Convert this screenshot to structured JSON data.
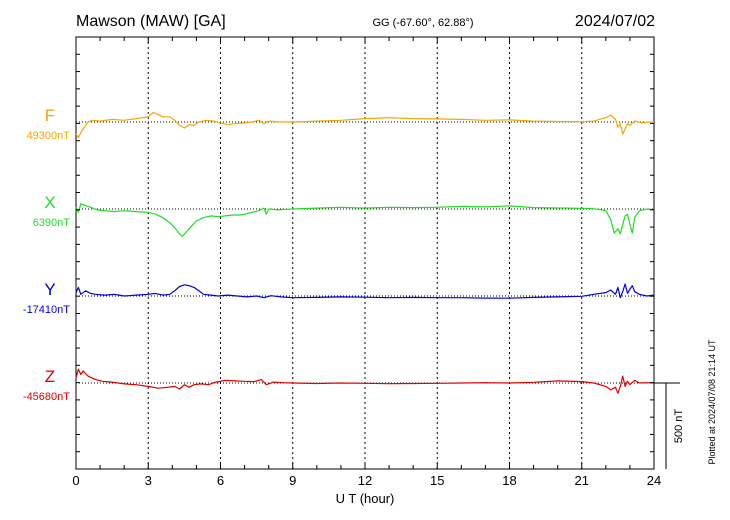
{
  "header": {
    "station": "Mawson (MAW)  [GA]",
    "coords": "GG (-67.60°,  62.88°)",
    "date": "2024/07/02"
  },
  "side_note": "Plotted at 2024/07/08 21:14 UT",
  "scale_label": "500 nT",
  "chart_data": {
    "type": "line",
    "xlabel": "U T (hour)",
    "xlim": [
      0,
      24
    ],
    "x_ticks": [
      "0",
      "3",
      "6",
      "9",
      "12",
      "15",
      "18",
      "21",
      "24"
    ],
    "scale_bar_nT": 500,
    "grid": "dotted vertical every 3 h, dotted baseline per trace",
    "series": [
      {
        "name": "F",
        "baseline_label": "49300nT",
        "baseline": 49300,
        "color": "#f0a800",
        "points": [
          [
            0,
            49230
          ],
          [
            0.1,
            49210
          ],
          [
            0.25,
            49250
          ],
          [
            0.35,
            49270
          ],
          [
            0.5,
            49300
          ],
          [
            0.7,
            49310
          ],
          [
            1.0,
            49305
          ],
          [
            1.5,
            49315
          ],
          [
            2.0,
            49310
          ],
          [
            2.5,
            49320
          ],
          [
            3.0,
            49330
          ],
          [
            3.2,
            49355
          ],
          [
            3.4,
            49345
          ],
          [
            3.6,
            49330
          ],
          [
            3.9,
            49330
          ],
          [
            4.1,
            49310
          ],
          [
            4.3,
            49280
          ],
          [
            4.5,
            49265
          ],
          [
            4.7,
            49285
          ],
          [
            4.9,
            49280
          ],
          [
            5.1,
            49300
          ],
          [
            5.4,
            49310
          ],
          [
            5.7,
            49305
          ],
          [
            6.0,
            49295
          ],
          [
            6.3,
            49285
          ],
          [
            6.6,
            49290
          ],
          [
            7.0,
            49295
          ],
          [
            7.3,
            49300
          ],
          [
            7.6,
            49310
          ],
          [
            7.8,
            49290
          ],
          [
            8.0,
            49305
          ],
          [
            8.5,
            49300
          ],
          [
            9.0,
            49300
          ],
          [
            10,
            49305
          ],
          [
            11,
            49310
          ],
          [
            12,
            49320
          ],
          [
            13,
            49325
          ],
          [
            14,
            49320
          ],
          [
            15,
            49318
          ],
          [
            16,
            49315
          ],
          [
            17,
            49310
          ],
          [
            18,
            49312
          ],
          [
            19,
            49305
          ],
          [
            20,
            49303
          ],
          [
            21,
            49302
          ],
          [
            21.5,
            49305
          ],
          [
            22.0,
            49325
          ],
          [
            22.2,
            49340
          ],
          [
            22.4,
            49315
          ],
          [
            22.5,
            49270
          ],
          [
            22.6,
            49290
          ],
          [
            22.7,
            49230
          ],
          [
            22.8,
            49260
          ],
          [
            22.9,
            49290
          ],
          [
            23.0,
            49280
          ],
          [
            23.2,
            49305
          ],
          [
            23.5,
            49295
          ],
          [
            23.8,
            49300
          ],
          [
            24,
            49300
          ]
        ]
      },
      {
        "name": "X",
        "baseline_label": "6390nT",
        "baseline": 6390,
        "color": "#22dd22",
        "points": [
          [
            0,
            6400
          ],
          [
            0.1,
            6370
          ],
          [
            0.2,
            6420
          ],
          [
            0.4,
            6410
          ],
          [
            0.6,
            6400
          ],
          [
            0.9,
            6385
          ],
          [
            1.2,
            6380
          ],
          [
            1.6,
            6375
          ],
          [
            2.0,
            6380
          ],
          [
            2.5,
            6375
          ],
          [
            3.0,
            6370
          ],
          [
            3.3,
            6360
          ],
          [
            3.6,
            6340
          ],
          [
            3.9,
            6310
          ],
          [
            4.1,
            6280
          ],
          [
            4.3,
            6245
          ],
          [
            4.4,
            6230
          ],
          [
            4.6,
            6260
          ],
          [
            4.8,
            6290
          ],
          [
            5.0,
            6320
          ],
          [
            5.3,
            6340
          ],
          [
            5.6,
            6350
          ],
          [
            5.9,
            6345
          ],
          [
            6.2,
            6350
          ],
          [
            6.5,
            6355
          ],
          [
            6.8,
            6355
          ],
          [
            7.0,
            6360
          ],
          [
            7.3,
            6370
          ],
          [
            7.6,
            6380
          ],
          [
            7.8,
            6395
          ],
          [
            7.9,
            6360
          ],
          [
            8.0,
            6390
          ],
          [
            8.4,
            6385
          ],
          [
            8.8,
            6388
          ],
          [
            9,
            6390
          ],
          [
            10,
            6395
          ],
          [
            11,
            6400
          ],
          [
            12,
            6395
          ],
          [
            13,
            6400
          ],
          [
            14,
            6398
          ],
          [
            15,
            6400
          ],
          [
            16,
            6405
          ],
          [
            17,
            6402
          ],
          [
            18,
            6408
          ],
          [
            19,
            6398
          ],
          [
            20,
            6396
          ],
          [
            21,
            6394
          ],
          [
            21.5,
            6392
          ],
          [
            22.0,
            6380
          ],
          [
            22.2,
            6330
          ],
          [
            22.35,
            6250
          ],
          [
            22.5,
            6275
          ],
          [
            22.6,
            6245
          ],
          [
            22.7,
            6300
          ],
          [
            22.8,
            6350
          ],
          [
            22.9,
            6360
          ],
          [
            23.0,
            6300
          ],
          [
            23.1,
            6250
          ],
          [
            23.2,
            6340
          ],
          [
            23.4,
            6380
          ],
          [
            23.7,
            6390
          ],
          [
            24,
            6385
          ]
        ]
      },
      {
        "name": "Y",
        "baseline_label": "-17410nT",
        "baseline": -17410,
        "color": "#0000e0",
        "points": [
          [
            0,
            -17390
          ],
          [
            0.1,
            -17360
          ],
          [
            0.2,
            -17400
          ],
          [
            0.4,
            -17380
          ],
          [
            0.6,
            -17395
          ],
          [
            0.8,
            -17400
          ],
          [
            1.2,
            -17405
          ],
          [
            1.6,
            -17400
          ],
          [
            2.0,
            -17410
          ],
          [
            2.5,
            -17405
          ],
          [
            3.0,
            -17400
          ],
          [
            3.3,
            -17395
          ],
          [
            3.6,
            -17405
          ],
          [
            3.9,
            -17400
          ],
          [
            4.1,
            -17380
          ],
          [
            4.3,
            -17355
          ],
          [
            4.5,
            -17345
          ],
          [
            4.7,
            -17350
          ],
          [
            4.9,
            -17360
          ],
          [
            5.1,
            -17380
          ],
          [
            5.3,
            -17400
          ],
          [
            5.6,
            -17405
          ],
          [
            5.9,
            -17410
          ],
          [
            6.3,
            -17405
          ],
          [
            6.7,
            -17410
          ],
          [
            7.1,
            -17415
          ],
          [
            7.5,
            -17410
          ],
          [
            7.8,
            -17420
          ],
          [
            8.1,
            -17408
          ],
          [
            8.5,
            -17415
          ],
          [
            9,
            -17420
          ],
          [
            10,
            -17418
          ],
          [
            11,
            -17415
          ],
          [
            12,
            -17417
          ],
          [
            13,
            -17420
          ],
          [
            14,
            -17418
          ],
          [
            15,
            -17420
          ],
          [
            16,
            -17420
          ],
          [
            17,
            -17422
          ],
          [
            18,
            -17423
          ],
          [
            19,
            -17418
          ],
          [
            20,
            -17415
          ],
          [
            21,
            -17412
          ],
          [
            21.5,
            -17400
          ],
          [
            22.0,
            -17390
          ],
          [
            22.2,
            -17375
          ],
          [
            22.4,
            -17400
          ],
          [
            22.5,
            -17360
          ],
          [
            22.6,
            -17420
          ],
          [
            22.7,
            -17385
          ],
          [
            22.8,
            -17340
          ],
          [
            22.9,
            -17395
          ],
          [
            23.0,
            -17370
          ],
          [
            23.1,
            -17350
          ],
          [
            23.2,
            -17385
          ],
          [
            23.4,
            -17400
          ],
          [
            23.7,
            -17410
          ],
          [
            24,
            -17405
          ]
        ]
      },
      {
        "name": "Z",
        "baseline_label": "-45680nT",
        "baseline": -45680,
        "color": "#e00000",
        "points": [
          [
            0,
            -45650
          ],
          [
            0.1,
            -45600
          ],
          [
            0.2,
            -45630
          ],
          [
            0.3,
            -45610
          ],
          [
            0.5,
            -45640
          ],
          [
            0.8,
            -45660
          ],
          [
            1.1,
            -45670
          ],
          [
            1.5,
            -45675
          ],
          [
            2.0,
            -45685
          ],
          [
            2.5,
            -45690
          ],
          [
            3.0,
            -45700
          ],
          [
            3.4,
            -45710
          ],
          [
            3.8,
            -45705
          ],
          [
            4.1,
            -45700
          ],
          [
            4.3,
            -45715
          ],
          [
            4.5,
            -45690
          ],
          [
            4.7,
            -45705
          ],
          [
            4.9,
            -45690
          ],
          [
            5.2,
            -45685
          ],
          [
            5.5,
            -45690
          ],
          [
            5.8,
            -45675
          ],
          [
            6.2,
            -45665
          ],
          [
            6.6,
            -45668
          ],
          [
            7.0,
            -45670
          ],
          [
            7.4,
            -45672
          ],
          [
            7.7,
            -45660
          ],
          [
            7.9,
            -45690
          ],
          [
            8.2,
            -45675
          ],
          [
            8.6,
            -45678
          ],
          [
            9,
            -45680
          ],
          [
            10,
            -45683
          ],
          [
            11,
            -45680
          ],
          [
            12,
            -45682
          ],
          [
            13,
            -45684
          ],
          [
            14,
            -45683
          ],
          [
            15,
            -45682
          ],
          [
            16,
            -45680
          ],
          [
            17,
            -45678
          ],
          [
            18,
            -45680
          ],
          [
            19,
            -45676
          ],
          [
            20,
            -45668
          ],
          [
            21,
            -45672
          ],
          [
            21.5,
            -45680
          ],
          [
            22.0,
            -45700
          ],
          [
            22.2,
            -45720
          ],
          [
            22.4,
            -45705
          ],
          [
            22.5,
            -45740
          ],
          [
            22.6,
            -45700
          ],
          [
            22.7,
            -45640
          ],
          [
            22.8,
            -45700
          ],
          [
            22.9,
            -45670
          ],
          [
            23.0,
            -45690
          ],
          [
            23.2,
            -45665
          ],
          [
            23.4,
            -45680
          ],
          [
            23.7,
            -45678
          ],
          [
            24,
            -45680
          ]
        ]
      }
    ]
  }
}
